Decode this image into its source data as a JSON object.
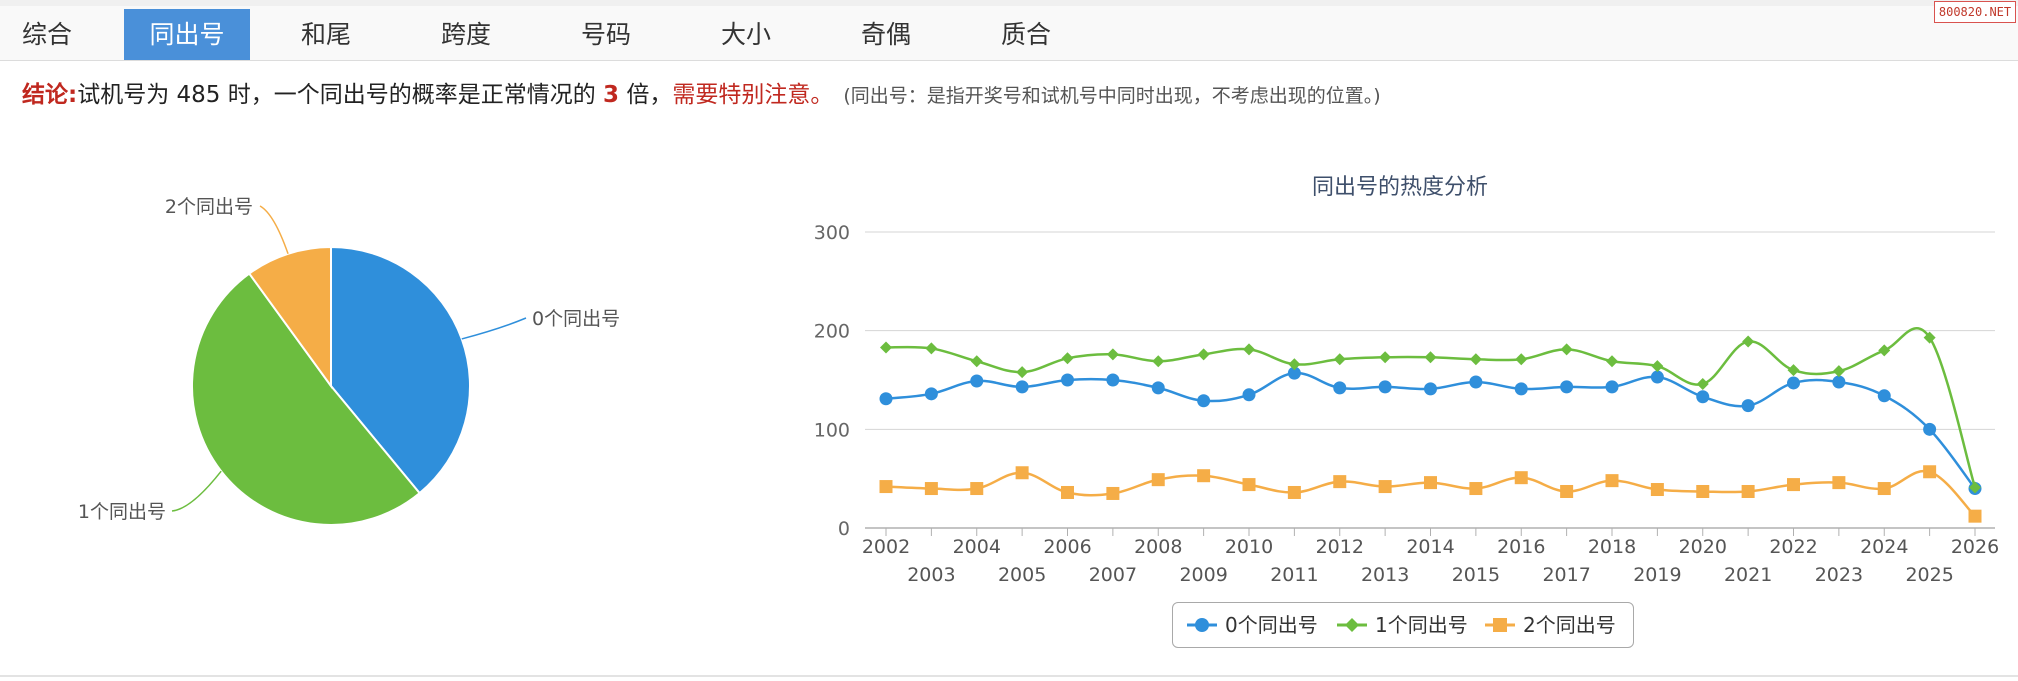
{
  "tabs": [
    {
      "label": "综合",
      "active": false
    },
    {
      "label": "同出号",
      "active": true
    },
    {
      "label": "和尾",
      "active": false
    },
    {
      "label": "跨度",
      "active": false
    },
    {
      "label": "号码",
      "active": false
    },
    {
      "label": "大小",
      "active": false
    },
    {
      "label": "奇偶",
      "active": false
    },
    {
      "label": "质合",
      "active": false
    }
  ],
  "watermark": "800820.NET",
  "conclusion": {
    "label": "结论:",
    "text_before": "试机号为 485 时，一个同出号的概率是正常情况的 ",
    "multiplier": "3",
    "text_after": " 倍，",
    "warning": "需要特别注意。",
    "note": "(同出号：是指开奖号和试机号中同时出现，不考虑出现的位置。)"
  },
  "colors": {
    "zero": "#2f8fdb",
    "one": "#6cbd3f",
    "two": "#f5ad47",
    "warning": "#c0281f",
    "tab_active": "#4a90d9"
  },
  "chart_data": [
    {
      "type": "pie",
      "slices": [
        {
          "label": "0个同出号",
          "value": 39
        },
        {
          "label": "1个同出号",
          "value": 51
        },
        {
          "label": "2个同出号",
          "value": 10
        }
      ]
    },
    {
      "type": "line",
      "title": "同出号的热度分析",
      "x": [
        "2002",
        "2003",
        "2004",
        "2005",
        "2006",
        "2007",
        "2008",
        "2009",
        "2010",
        "2011",
        "2012",
        "2013",
        "2014",
        "2015",
        "2016",
        "2017",
        "2018",
        "2019",
        "2020",
        "2021",
        "2022",
        "2023",
        "2024",
        "2025",
        "2026"
      ],
      "series": [
        {
          "name": "0个同出号",
          "marker": "circle",
          "values": [
            131,
            136,
            149,
            143,
            150,
            150,
            142,
            129,
            135,
            157,
            142,
            143,
            141,
            148,
            141,
            143,
            143,
            153,
            133,
            124,
            147,
            148,
            134,
            100,
            40
          ]
        },
        {
          "name": "1个同出号",
          "marker": "diamond",
          "values": [
            183,
            182,
            169,
            158,
            172,
            176,
            169,
            176,
            181,
            166,
            171,
            173,
            173,
            171,
            171,
            181,
            169,
            164,
            146,
            189,
            160,
            159,
            180,
            193,
            41
          ]
        },
        {
          "name": "2个同出号",
          "marker": "square",
          "values": [
            42,
            40,
            40,
            56,
            36,
            35,
            49,
            53,
            44,
            36,
            47,
            42,
            46,
            40,
            51,
            37,
            48,
            39,
            37,
            37,
            44,
            46,
            40,
            57,
            12
          ]
        }
      ],
      "yticks": [
        "0",
        "100",
        "200",
        "300"
      ],
      "ylim": [
        0,
        300
      ],
      "grid": true,
      "legend_position": "bottom"
    }
  ]
}
